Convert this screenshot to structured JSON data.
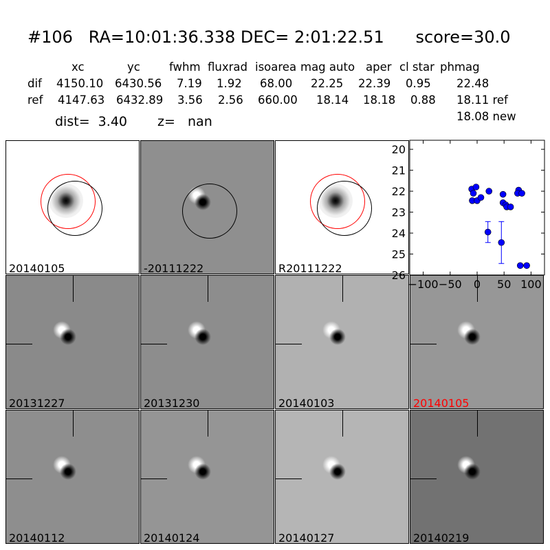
{
  "title": "#106   RA=10:01:36.338 DEC= 2:01:22.51      score=30.0",
  "table": {
    "headers": [
      "xc",
      "yc",
      "fwhm",
      "fluxrad",
      "isoarea",
      "mag auto",
      "aper",
      "cl star",
      "phmag"
    ],
    "rows": [
      {
        "label": "dif",
        "values": [
          "4150.10",
          "6430.56",
          "7.19",
          "1.92",
          "68.00",
          "22.25",
          "22.39",
          "0.95",
          "22.48"
        ]
      },
      {
        "label": "ref",
        "values": [
          "4147.63",
          "6432.89",
          "3.56",
          "2.56",
          "660.00",
          "18.14",
          "18.18",
          "0.88",
          "18.11 ref"
        ]
      }
    ],
    "extra_phmag": "18.08 new",
    "dist": "dist=  3.40",
    "z": "z=   nan"
  },
  "panels": [
    {
      "label": "20140105",
      "bg": "#ffffff",
      "kind": "ref"
    },
    {
      "label": "-20111222",
      "bg": "#8f8f8f",
      "kind": "diffcirc"
    },
    {
      "label": "R20111222",
      "bg": "#ffffff",
      "kind": "ref"
    },
    {
      "label": "20131227",
      "bg": "#8a8a8a",
      "kind": "diff"
    },
    {
      "label": "20131230",
      "bg": "#8d8d8d",
      "kind": "diff"
    },
    {
      "label": "20140103",
      "bg": "#b1b1b1",
      "kind": "diff"
    },
    {
      "label": "20140105",
      "bg": "#979797",
      "kind": "diff",
      "color": "#ff0000"
    },
    {
      "label": "20140112",
      "bg": "#8e8e8e",
      "kind": "diff"
    },
    {
      "label": "20140124",
      "bg": "#959595",
      "kind": "diff"
    },
    {
      "label": "20140127",
      "bg": "#b5b5b5",
      "kind": "diff"
    },
    {
      "label": "20140219",
      "bg": "#727272",
      "kind": "diff"
    }
  ],
  "chart_data": {
    "type": "scatter",
    "xlim": [
      -125,
      125
    ],
    "ylim": [
      26,
      19.7
    ],
    "y_inverted": true,
    "xticks": [
      "−100",
      "−50",
      "0",
      "50",
      "100"
    ],
    "xtick_values": [
      -100,
      -50,
      0,
      50,
      100
    ],
    "yticks": [
      "20",
      "21",
      "22",
      "23",
      "24",
      "25",
      "26"
    ],
    "ytick_values": [
      20,
      21,
      22,
      23,
      24,
      25,
      26
    ],
    "color": "#0000ff",
    "points": [
      {
        "x": -10,
        "y": 21.9
      },
      {
        "x": -2,
        "y": 21.8
      },
      {
        "x": -7,
        "y": 22.1
      },
      {
        "x": -9,
        "y": 22.45
      },
      {
        "x": 0,
        "y": 22.45
      },
      {
        "x": 7,
        "y": 22.3
      },
      {
        "x": 22,
        "y": 22.0
      },
      {
        "x": 20,
        "y": 23.95,
        "err": 0.5
      },
      {
        "x": 48,
        "y": 22.15
      },
      {
        "x": 45,
        "y": 24.45,
        "err": 1.0
      },
      {
        "x": 48,
        "y": 22.55
      },
      {
        "x": 53,
        "y": 22.65
      },
      {
        "x": 55,
        "y": 22.75
      },
      {
        "x": 62,
        "y": 22.75
      },
      {
        "x": 77,
        "y": 21.95
      },
      {
        "x": 75,
        "y": 22.1
      },
      {
        "x": 83,
        "y": 22.1
      },
      {
        "x": 80,
        "y": 25.55
      },
      {
        "x": 92,
        "y": 25.55
      }
    ]
  }
}
